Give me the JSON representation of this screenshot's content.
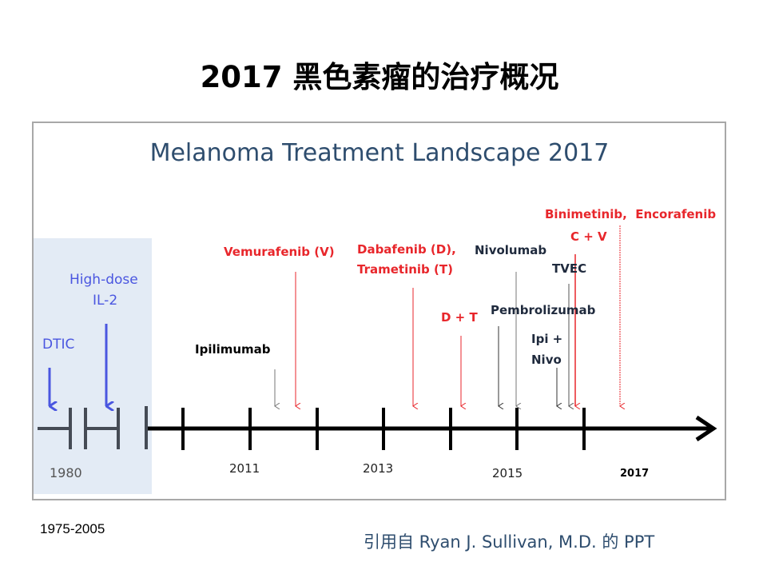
{
  "page_title": "2017 黑色素瘤的治疗概况",
  "slide": {
    "heading": "Melanoma Treatment Landscape 2017",
    "era_label": "1975-2005",
    "citation": "引用自 Ryan J. Sullivan, M.D. 的 PPT",
    "colors": {
      "targeted": "#e8262b",
      "immuno": "#1f2a3d",
      "historic": "#4a56e0",
      "heading": "#2e4d6e",
      "historic_band": "#e3ebf5"
    }
  },
  "timeline": {
    "year_labels": [
      "1980",
      "2011",
      "2013",
      "2015",
      "2017"
    ],
    "events": [
      {
        "label": "DTIC",
        "category": "historic"
      },
      {
        "label": "High-dose",
        "label2": "IL-2",
        "category": "historic"
      },
      {
        "label": "Ipilimumab",
        "category": "immuno"
      },
      {
        "label": "Vemurafenib (V)",
        "category": "targeted"
      },
      {
        "label": "Dabafenib (D),",
        "label2": "Trametinib (T)",
        "category": "targeted"
      },
      {
        "label": "D + T",
        "category": "targeted"
      },
      {
        "label": "Nivolumab",
        "category": "immuno"
      },
      {
        "label": "Pembrolizumab",
        "category": "immuno"
      },
      {
        "label": "Ipi +",
        "label2": "Nivo",
        "category": "immuno"
      },
      {
        "label": "TVEC",
        "category": "immuno"
      },
      {
        "label": "C + V",
        "category": "targeted"
      },
      {
        "label": "Binimetinib,  Encorafenib",
        "category": "targeted"
      }
    ]
  }
}
